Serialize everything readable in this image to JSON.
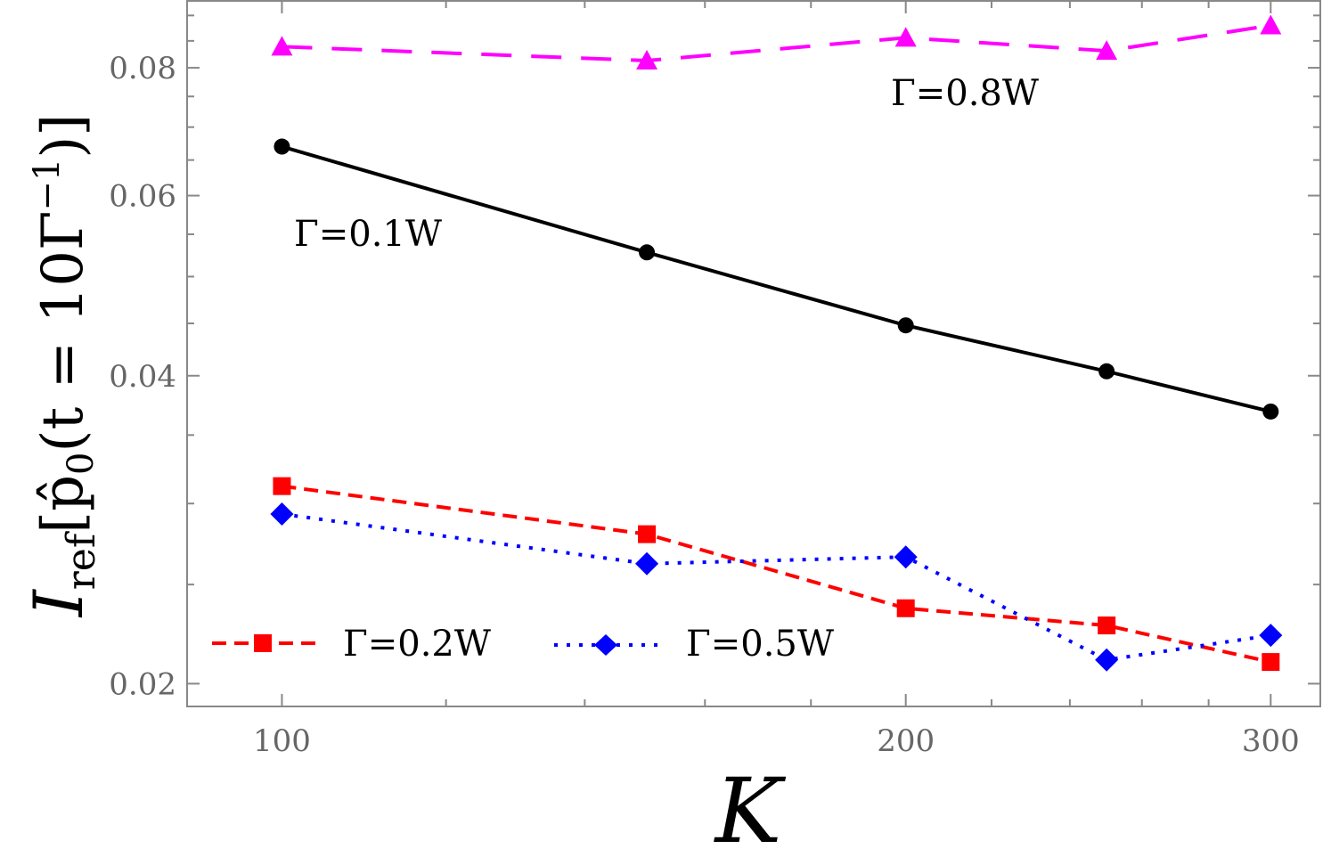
{
  "chart_data": {
    "type": "line",
    "xlabel": "K",
    "ylabel": {
      "main": "I",
      "sub": "ref",
      "bracket": "[p̂",
      "sub2": "0",
      "arg": "(t = 10Γ",
      "sup": "−1",
      "close": ")]"
    },
    "x_scale": "log",
    "y_scale": "log",
    "xlim": [
      90,
      317
    ],
    "ylim": [
      0.019,
      0.093
    ],
    "x_ticks": [
      100,
      200,
      300
    ],
    "x_tick_labels": [
      "100",
      "200",
      "300"
    ],
    "x_minor_ticks": [
      120,
      140,
      160,
      180,
      220,
      240,
      260,
      280
    ],
    "y_ticks": [
      0.02,
      0.04,
      0.06,
      0.08
    ],
    "y_tick_labels": [
      "0.02",
      "0.04",
      "0.06",
      "0.08"
    ],
    "y_minor_ticks": [
      0.025,
      0.03,
      0.035,
      0.045,
      0.05,
      0.055,
      0.065,
      0.07,
      0.075,
      0.085,
      0.09
    ],
    "grid": false,
    "legend_placement": "bottom-left",
    "x": [
      100,
      150,
      200,
      250,
      300
    ],
    "series": [
      {
        "name": "Γ=0.1W",
        "values": [
          0.067,
          0.0528,
          0.0448,
          0.0404,
          0.0369
        ],
        "color": "#000000",
        "marker": "circle",
        "line": "solid",
        "label_in": "annotation"
      },
      {
        "name": "Γ=0.2W",
        "values": [
          0.0312,
          0.028,
          0.0237,
          0.0228,
          0.021
        ],
        "color": "#ff0000",
        "marker": "square",
        "line": "dashed",
        "label_in": "legend"
      },
      {
        "name": "Γ=0.5W",
        "values": [
          0.0293,
          0.0262,
          0.0266,
          0.0211,
          0.0223
        ],
        "color": "#0000ff",
        "marker": "diamond",
        "line": "dotted",
        "label_in": "legend"
      },
      {
        "name": "Γ=0.8W",
        "values": [
          0.0839,
          0.0813,
          0.0856,
          0.0831,
          0.088
        ],
        "color": "#ff00ff",
        "marker": "triangle",
        "line": "longdash",
        "label_in": "annotation"
      }
    ]
  }
}
